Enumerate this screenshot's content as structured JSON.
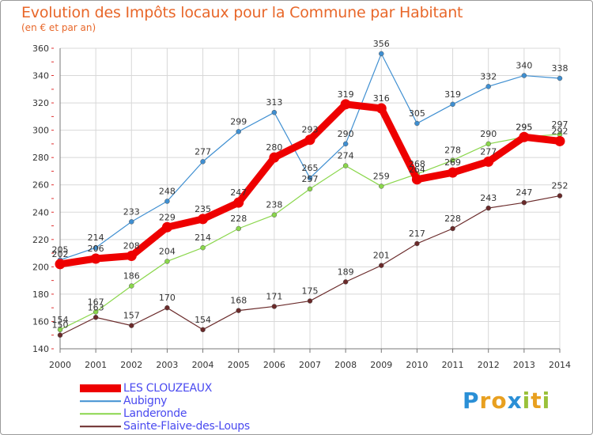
{
  "chart_data": {
    "type": "line",
    "title": "Evolution des Impôts locaux pour la Commune par Habitant",
    "subtitle": "(en € et par an)",
    "xlabel": "",
    "ylabel": "",
    "categories": [
      "2000",
      "2001",
      "2002",
      "2003",
      "2004",
      "2005",
      "2006",
      "2007",
      "2008",
      "2009",
      "2010",
      "2011",
      "2012",
      "2013",
      "2014"
    ],
    "ylim": [
      140,
      360
    ],
    "yticks": [
      140,
      160,
      180,
      200,
      220,
      240,
      260,
      280,
      300,
      320,
      340,
      360
    ],
    "grid": true,
    "series": [
      {
        "name": "LES CLOUZEAUX",
        "color": "#ee0000",
        "bold": true,
        "values": [
          202,
          206,
          208,
          229,
          235,
          247,
          280,
          293,
          319,
          316,
          264,
          269,
          277,
          295,
          292
        ]
      },
      {
        "name": "Aubigny",
        "color": "#3f8fd1",
        "values": [
          205,
          214,
          233,
          248,
          277,
          299,
          313,
          265,
          290,
          356,
          305,
          319,
          332,
          340,
          338
        ]
      },
      {
        "name": "Landeronde",
        "color": "#8ad64b",
        "values": [
          154,
          167,
          186,
          204,
          214,
          228,
          238,
          257,
          274,
          259,
          268,
          278,
          290,
          295,
          297
        ]
      },
      {
        "name": "Sainte-Flaive-des-Loups",
        "color": "#6a2a2a",
        "values": [
          150,
          163,
          157,
          170,
          154,
          168,
          171,
          175,
          189,
          201,
          217,
          228,
          243,
          247,
          252
        ]
      }
    ]
  },
  "logo": {
    "text": "Proxiti",
    "letters": [
      "P",
      "r",
      "o",
      "x",
      "i",
      "t",
      "i"
    ],
    "colors": [
      "#2a8fd6",
      "#e8a020",
      "#e8a020",
      "#2a8fd6",
      "#9ac13a",
      "#e8a020",
      "#9ac13a"
    ]
  }
}
